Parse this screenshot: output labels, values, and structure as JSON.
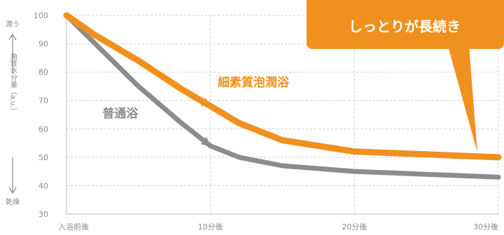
{
  "chart_data": {
    "type": "line",
    "x_categories": [
      "入浴前後",
      "10分後",
      "20分後",
      "30分後"
    ],
    "x": [
      0,
      10,
      20,
      30
    ],
    "ylim": [
      30,
      100
    ],
    "y_ticks": [
      30,
      40,
      50,
      60,
      70,
      80,
      90,
      100
    ],
    "grid": "dashed",
    "ylabel": {
      "top": "潤う",
      "middle": "角質水分量（a.u.）",
      "bottom": "乾燥"
    },
    "series": [
      {
        "name": "普通浴",
        "color": "#8c8c8c",
        "points": [
          [
            0,
            100
          ],
          [
            2,
            90
          ],
          [
            5,
            75
          ],
          [
            8,
            62
          ],
          [
            10,
            54
          ],
          [
            12,
            50
          ],
          [
            15,
            47
          ],
          [
            20,
            45
          ],
          [
            25,
            44
          ],
          [
            30,
            43
          ]
        ]
      },
      {
        "name": "細素質泡潤浴",
        "color": "#f0901e",
        "points": [
          [
            0,
            100
          ],
          [
            2,
            93
          ],
          [
            5,
            84
          ],
          [
            8,
            74
          ],
          [
            10,
            68
          ],
          [
            12,
            62
          ],
          [
            15,
            56
          ],
          [
            20,
            52
          ],
          [
            25,
            51
          ],
          [
            30,
            50
          ]
        ]
      }
    ],
    "callout": {
      "text": "しっとりが長続き",
      "color": "#f0901e"
    }
  }
}
